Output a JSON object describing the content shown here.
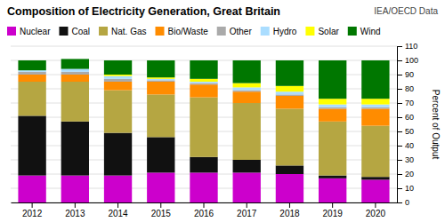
{
  "chart_data": {
    "type": "bar",
    "stacked": true,
    "title": "Composition of Electricity Generation, Great Britain",
    "annotations": [
      "IEA/OECD Data"
    ],
    "ylabel": "Percent of Output",
    "categories": [
      "2012",
      "2013",
      "2014",
      "2015",
      "2016",
      "2017",
      "2018",
      "2019",
      "2020"
    ],
    "series": [
      {
        "name": "Nuclear",
        "color": "#cc00cc",
        "values": [
          19,
          19,
          19,
          21,
          21,
          21,
          20,
          17,
          16
        ]
      },
      {
        "name": "Coal",
        "color": "#111111",
        "values": [
          42,
          38,
          30,
          25,
          11,
          9,
          6,
          2,
          2
        ]
      },
      {
        "name": "Nat. Gas",
        "color": "#b5a642",
        "values": [
          24,
          28,
          30,
          30,
          42,
          40,
          40,
          38,
          36
        ]
      },
      {
        "name": "Bio/Waste",
        "color": "#ff8c00",
        "values": [
          5,
          5,
          6,
          9,
          9,
          8,
          9,
          9,
          12
        ]
      },
      {
        "name": "Other",
        "color": "#aaaaaa",
        "values": [
          2,
          2,
          2,
          1,
          1,
          1,
          1,
          1,
          1
        ]
      },
      {
        "name": "Hydro",
        "color": "#aaddff",
        "values": [
          1,
          2,
          2,
          1,
          1,
          2,
          2,
          2,
          2
        ]
      },
      {
        "name": "Solar",
        "color": "#ffff00",
        "values": [
          0,
          0,
          1,
          1,
          2,
          3,
          4,
          4,
          4
        ]
      },
      {
        "name": "Wind",
        "color": "#007700",
        "values": [
          7,
          7,
          10,
          12,
          13,
          16,
          18,
          27,
          27
        ]
      }
    ],
    "ylim": [
      0,
      110
    ],
    "yticks": [
      0,
      10,
      20,
      30,
      40,
      50,
      60,
      70,
      80,
      90,
      100,
      110
    ],
    "grid": true,
    "legend": "top-left"
  }
}
